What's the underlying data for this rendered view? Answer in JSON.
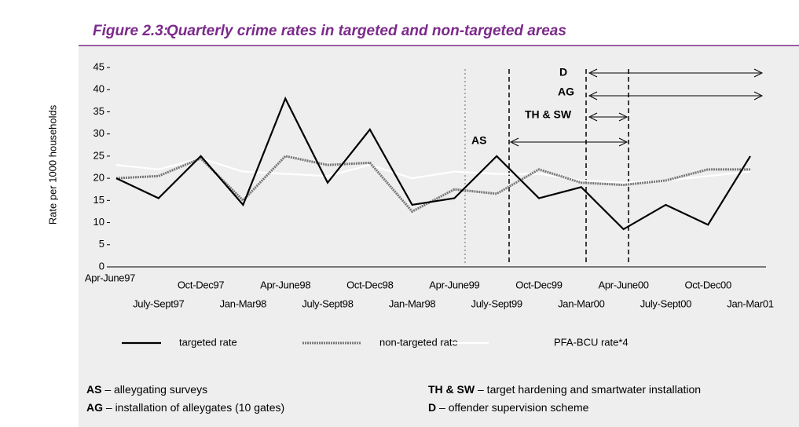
{
  "chart_data": {
    "type": "line",
    "title_prefix": "Figure 2.3:",
    "title": "Quarterly crime rates in targeted and non-targeted areas",
    "y_label": "Rate per 1000 households",
    "categories": [
      "Apr-June97",
      "July-Sept97",
      "Oct-Dec97",
      "Jan-Mar98",
      "Apr-June98",
      "July-Sept98",
      "Oct-Dec98",
      "Jan-Mar98",
      "Apr-June99",
      "July-Sept99",
      "Oct-Dec99",
      "Jan-Mar00",
      "Apr-June00",
      "July-Sept00",
      "Oct-Dec00",
      "Jan-Mar01"
    ],
    "series": [
      {
        "name": "targeted rate",
        "color": "#000000",
        "style": "solid",
        "values": [
          20,
          15.5,
          25,
          14,
          38,
          19,
          31,
          14,
          15.5,
          25,
          15.5,
          18,
          8.5,
          14,
          9.5,
          25
        ]
      },
      {
        "name": "non-targeted rate",
        "color": "#777777",
        "style": "dotted",
        "values": [
          20,
          20.5,
          24.5,
          15,
          25,
          23,
          23.5,
          12.5,
          17.5,
          16.5,
          22,
          19,
          18.5,
          19.5,
          22,
          22
        ]
      },
      {
        "name": "PFA-BCU rate*4",
        "color": "#ffffff",
        "style": "solid",
        "values": [
          23,
          22,
          24.5,
          21.5,
          21,
          20.5,
          23,
          20,
          21.5,
          21,
          21,
          19.5,
          19,
          19.5,
          20.5,
          21.5
        ]
      }
    ],
    "ylim": [
      0,
      45
    ],
    "yticks": [
      0,
      5,
      10,
      15,
      20,
      25,
      30,
      35,
      40,
      45
    ],
    "grid": false,
    "annotations": [
      "D",
      "AG",
      "TH & SW",
      "AS"
    ],
    "notes": [
      {
        "abbr": "AS",
        "text": "– alleygating surveys"
      },
      {
        "abbr": "TH & SW",
        "text": "– target hardening and smartwater installation"
      },
      {
        "abbr": "AG",
        "text": "– installation of alleygates (10 gates)"
      },
      {
        "abbr": "D",
        "text": "– offender supervision scheme"
      }
    ]
  }
}
